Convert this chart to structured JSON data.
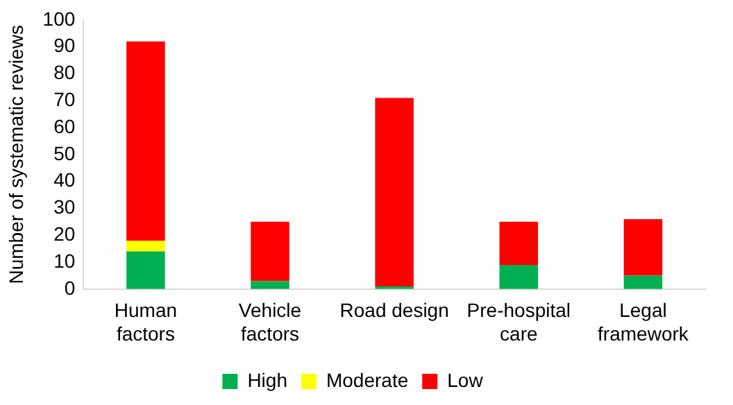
{
  "chart_data": {
    "type": "bar",
    "stacked": true,
    "ylabel": "Number of systematic reviews",
    "categories": [
      "Human factors",
      "Vehicle factors",
      "Road design",
      "Pre-hospital care",
      "Legal framework"
    ],
    "series": [
      {
        "name": "High",
        "color": "#00b050",
        "values": [
          14,
          3,
          1,
          9,
          5
        ]
      },
      {
        "name": "Moderate",
        "color": "#ffff00",
        "values": [
          4,
          0,
          0,
          0,
          0
        ]
      },
      {
        "name": "Low",
        "color": "#ff0000",
        "values": [
          74,
          22,
          70,
          16,
          21
        ]
      }
    ],
    "ylim": [
      0,
      100
    ],
    "yticks": [
      0,
      10,
      20,
      30,
      40,
      50,
      60,
      70,
      80,
      90,
      100
    ],
    "grid": false,
    "legend": "bottom"
  }
}
